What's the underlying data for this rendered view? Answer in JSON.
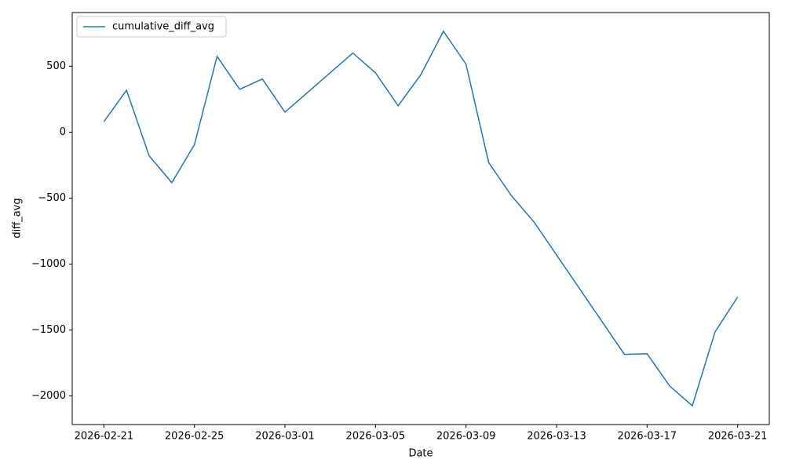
{
  "chart_data": {
    "type": "line",
    "x_label": "Date",
    "y_label": "diff_avg",
    "legend": "upper left",
    "x": [
      "2026-02-21",
      "2026-02-22",
      "2026-02-23",
      "2026-02-24",
      "2026-02-25",
      "2026-02-26",
      "2026-02-27",
      "2026-02-28",
      "2026-03-01",
      "2026-03-04",
      "2026-03-05",
      "2026-03-06",
      "2026-03-07",
      "2026-03-08",
      "2026-03-09",
      "2026-03-10",
      "2026-03-11",
      "2026-03-12",
      "2026-03-16",
      "2026-03-17",
      "2026-03-18",
      "2026-03-19",
      "2026-03-20",
      "2026-03-21"
    ],
    "series": [
      {
        "name": "cumulative_diff_avg",
        "color": "#1f77b4",
        "values": [
          80,
          318,
          -180,
          -383,
          -95,
          575,
          325,
          403,
          152,
          600,
          450,
          200,
          435,
          765,
          515,
          -230,
          -480,
          -680,
          -1685,
          -1680,
          -1925,
          -2075,
          -1515,
          -1250
        ]
      }
    ],
    "xlim": [
      "2026-02-19T14:24",
      "2026-03-22T09:36"
    ],
    "xticks": [
      "2026-02-21",
      "2026-02-25",
      "2026-03-01",
      "2026-03-05",
      "2026-03-09",
      "2026-03-13",
      "2026-03-17",
      "2026-03-21"
    ],
    "ylim": [
      -2217,
      907
    ],
    "yticks": [
      {
        "value": -2000,
        "label": "−2000"
      },
      {
        "value": -1500,
        "label": "−1500"
      },
      {
        "value": -1000,
        "label": "−1000"
      },
      {
        "value": -500,
        "label": "−500"
      },
      0,
      500
    ],
    "grid": false
  }
}
